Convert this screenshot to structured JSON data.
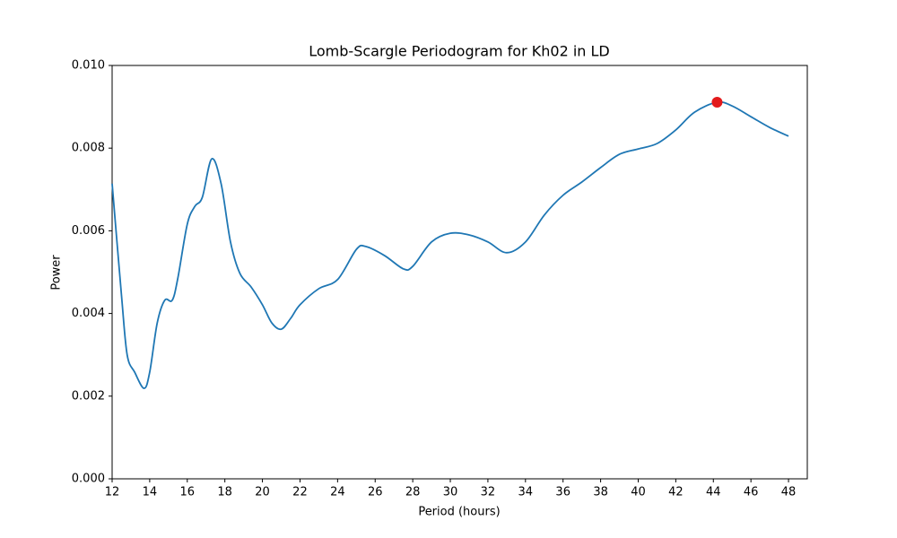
{
  "chart_data": {
    "type": "line",
    "title": "Lomb-Scargle Periodogram for Kh02 in LD",
    "x_label": "Period (hours)",
    "y_label": "Power",
    "x": [
      12,
      12.5,
      12.8,
      13.2,
      13.7,
      14.0,
      14.4,
      14.8,
      15.2,
      15.5,
      16.0,
      16.4,
      16.8,
      17.3,
      17.8,
      18.3,
      18.8,
      19.4,
      20.0,
      20.5,
      21.0,
      21.5,
      22.0,
      23.0,
      24.0,
      25.0,
      25.5,
      26.5,
      27.5,
      28.0,
      29.0,
      30.0,
      31.0,
      32.0,
      33.0,
      34.0,
      35.0,
      36.0,
      37.0,
      38.0,
      39.0,
      40.0,
      41.0,
      42.0,
      43.0,
      44.2,
      45.0,
      46.0,
      47.0,
      48.0
    ],
    "series": [
      {
        "color": "#1f77b4",
        "values": [
          0.00714,
          0.00443,
          0.003,
          0.00258,
          0.00219,
          0.00258,
          0.00377,
          0.00432,
          0.00432,
          0.00486,
          0.00616,
          0.00659,
          0.00681,
          0.00774,
          0.00714,
          0.00573,
          0.00497,
          0.00464,
          0.00421,
          0.00377,
          0.00362,
          0.00388,
          0.00421,
          0.0046,
          0.00482,
          0.00555,
          0.00562,
          0.0054,
          0.00508,
          0.00514,
          0.00573,
          0.00594,
          0.0059,
          0.00573,
          0.00547,
          0.00573,
          0.00638,
          0.00686,
          0.00718,
          0.00753,
          0.00785,
          0.00798,
          0.00811,
          0.00844,
          0.00887,
          0.00911,
          0.00902,
          0.00876,
          0.0085,
          0.00829
        ]
      }
    ],
    "peak": {
      "x": 44.2,
      "y": 0.00911,
      "color": "#e31a1c"
    },
    "xlim": [
      12,
      49
    ],
    "ylim": [
      0,
      0.01
    ],
    "xticks": [
      12,
      14,
      16,
      18,
      20,
      22,
      24,
      26,
      28,
      30,
      32,
      34,
      36,
      38,
      40,
      42,
      44,
      46,
      48
    ],
    "yticks": [
      {
        "value": 0,
        "label": "0.000"
      },
      {
        "value": 0.002,
        "label": "0.002"
      },
      {
        "value": 0.004,
        "label": "0.004"
      },
      {
        "value": 0.006,
        "label": "0.006"
      },
      {
        "value": 0.008,
        "label": "0.008"
      },
      {
        "value": 0.01,
        "label": "0.010"
      }
    ]
  }
}
